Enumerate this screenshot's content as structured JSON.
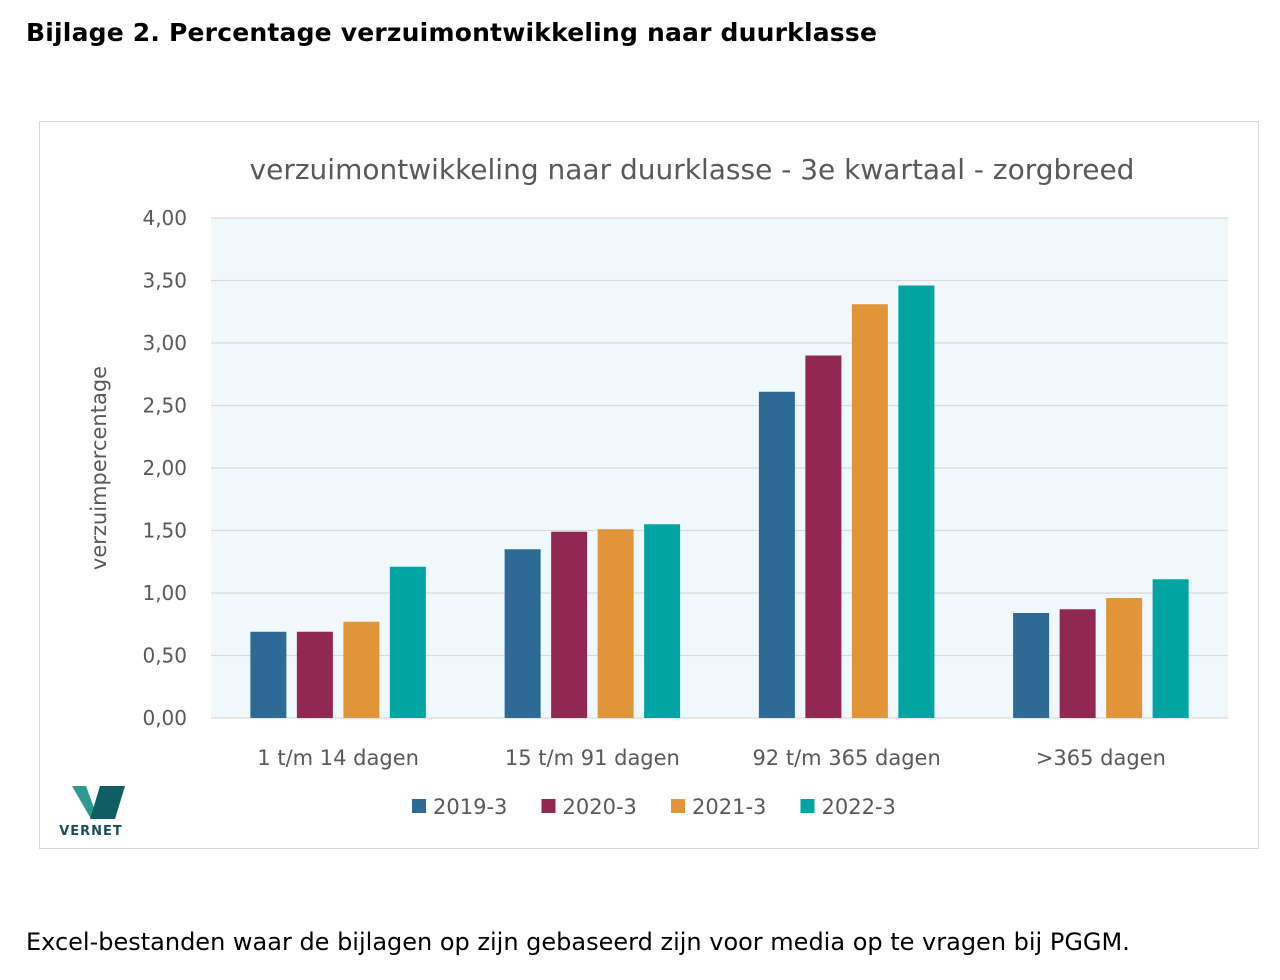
{
  "page": {
    "heading": "Bijlage 2. Percentage verzuimontwikkeling naar duurklasse",
    "footnote": "Excel-bestanden waar de bijlagen op zijn gebaseerd zijn voor media op te vragen bij PGGM."
  },
  "logo": {
    "text": "VERNET",
    "colors": {
      "left": "#2e9a8f",
      "right": "#0f5e63"
    }
  },
  "chart_data": {
    "type": "bar",
    "title": "verzuimontwikkeling naar duurklasse - 3e kwartaal - zorgbreed",
    "xlabel": "",
    "ylabel": "verzuimpercentage",
    "ylim": [
      0,
      4
    ],
    "ytick_values": [
      0,
      0.5,
      1,
      1.5,
      2,
      2.5,
      3,
      3.5,
      4
    ],
    "ytick_labels": [
      "0,00",
      "0,50",
      "1,00",
      "1,50",
      "2,00",
      "2,50",
      "3,00",
      "3,50",
      "4,00"
    ],
    "categories": [
      "1 t/m 14 dagen",
      "15 t/m 91 dagen",
      "92 t/m 365 dagen",
      ">365 dagen"
    ],
    "series": [
      {
        "name": "2019-3",
        "color": "#2e6a96",
        "values": [
          0.69,
          1.35,
          2.61,
          0.84
        ]
      },
      {
        "name": "2020-3",
        "color": "#902852",
        "values": [
          0.69,
          1.49,
          2.9,
          0.87
        ]
      },
      {
        "name": "2021-3",
        "color": "#df9538",
        "values": [
          0.77,
          1.51,
          3.31,
          0.96
        ]
      },
      {
        "name": "2022-3",
        "color": "#00a5a3",
        "values": [
          1.21,
          1.55,
          3.46,
          1.11
        ]
      }
    ],
    "legend_position": "bottom",
    "grid": true,
    "plot_background": "#f1f8fb",
    "gridline_color": "#d9d9d9"
  }
}
